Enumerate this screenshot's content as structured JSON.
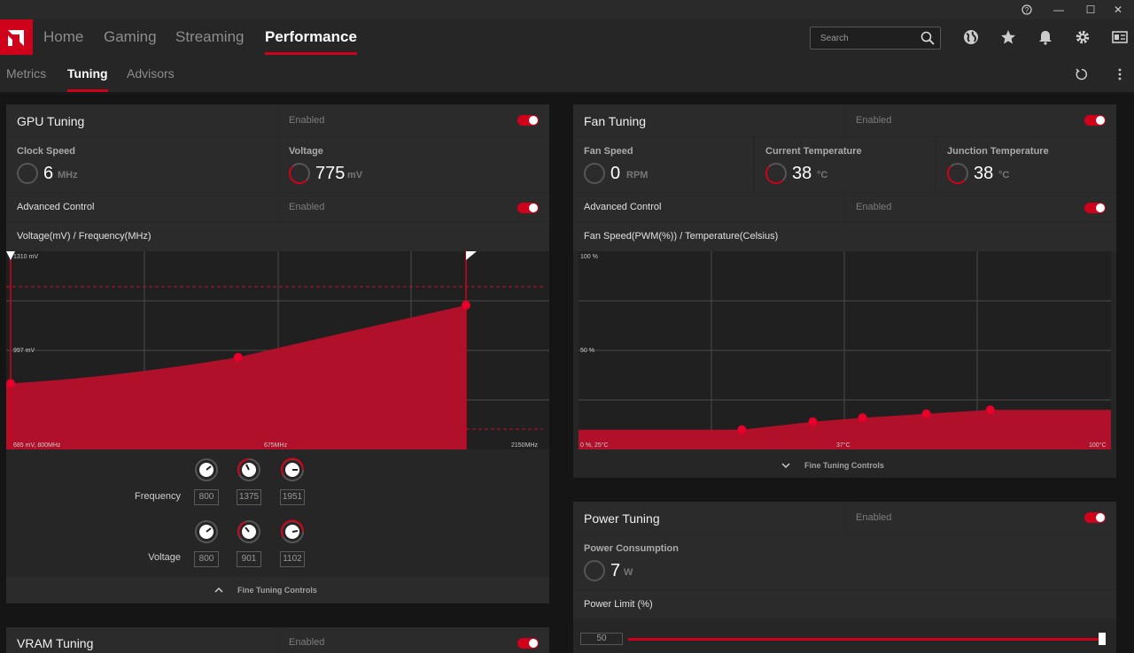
{
  "colors": {
    "accent": "#d0021b",
    "panel": "#262626"
  },
  "titlebar": {
    "help": "?",
    "minimize": "—",
    "maximize": "☐",
    "close": "✕"
  },
  "nav": {
    "home": "Home",
    "gaming": "Gaming",
    "streaming": "Streaming",
    "performance": "Performance"
  },
  "search": {
    "placeholder": "Search"
  },
  "subnav": {
    "metrics": "Metrics",
    "tuning": "Tuning",
    "advisors": "Advisors"
  },
  "gpu": {
    "title": "GPU Tuning",
    "status": "Enabled",
    "clock_label": "Clock Speed",
    "clock_value": "6",
    "clock_unit": "MHz",
    "voltage_label": "Voltage",
    "voltage_value": "775",
    "voltage_unit": "mV",
    "adv_label": "Advanced Control",
    "adv_status": "Enabled",
    "chart_title": "Voltage(mV) / Frequency(MHz)",
    "freq_label": "Frequency",
    "freq_values": [
      "800",
      "1375",
      "1951"
    ],
    "volt_label": "Voltage",
    "volt_values": [
      "800",
      "901",
      "1102"
    ],
    "fine": "Fine Tuning Controls"
  },
  "fan": {
    "title": "Fan Tuning",
    "status": "Enabled",
    "speed_label": "Fan Speed",
    "speed_value": "0",
    "speed_unit": "RPM",
    "temp_label": "Current Temperature",
    "temp_value": "38",
    "temp_unit": "°C",
    "junc_label": "Junction Temperature",
    "junc_value": "38",
    "junc_unit": "°C",
    "adv_label": "Advanced Control",
    "adv_status": "Enabled",
    "chart_title": "Fan Speed(PWM(%)) / Temperature(Celsius)",
    "fine": "Fine Tuning Controls"
  },
  "power": {
    "title": "Power Tuning",
    "status": "Enabled",
    "cons_label": "Power Consumption",
    "cons_value": "7",
    "cons_unit": "W",
    "limit_label": "Power Limit (%)",
    "limit_value": "50"
  },
  "vram": {
    "title": "VRAM Tuning",
    "status": "Enabled"
  },
  "chart_data": [
    {
      "type": "area",
      "title": "Voltage(mV) / Frequency(MHz)",
      "tick_labels": {
        "top_left": "1310 mV",
        "mid_left": "997 mV",
        "bottom_left": "685 mV, 800MHz",
        "bottom_mid": "675MHz",
        "bottom_right": "2150MHz"
      },
      "x": [
        800,
        1375,
        1951
      ],
      "y": [
        800,
        901,
        1102
      ],
      "grid": true
    },
    {
      "type": "area",
      "title": "Fan Speed(PWM(%)) / Temperature(Celsius)",
      "tick_labels": {
        "top_left": "100 %",
        "mid_left": "50 %",
        "bottom_left": "0 %, 25°C",
        "bottom_mid": "37°C",
        "bottom_right": "100°C"
      },
      "x": [
        25,
        48,
        58,
        65,
        74,
        83,
        100
      ],
      "y": [
        10,
        10,
        14,
        16,
        18,
        20,
        20
      ],
      "grid": true
    }
  ]
}
